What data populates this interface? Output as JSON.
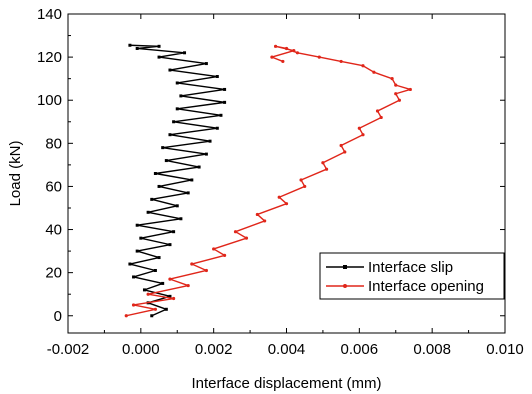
{
  "chart_data": {
    "type": "line",
    "title": "",
    "xlabel": "Interface displacement (mm)",
    "ylabel": "Load (kN)",
    "xlim": [
      -0.002,
      0.01
    ],
    "ylim": [
      -8,
      140
    ],
    "x_ticks": [
      "-0.002",
      "0.000",
      "0.002",
      "0.004",
      "0.006",
      "0.008",
      "0.010"
    ],
    "y_ticks": [
      "0",
      "20",
      "40",
      "60",
      "80",
      "100",
      "120",
      "140"
    ],
    "legend_position": "middle-right",
    "grid": false,
    "series": [
      {
        "name": "Interface slip",
        "color": "#000000",
        "marker": "square",
        "points": [
          [
            0.0003,
            0
          ],
          [
            0.0007,
            3
          ],
          [
            0.0002,
            6
          ],
          [
            0.0008,
            9
          ],
          [
            0.0001,
            12
          ],
          [
            0.0006,
            15
          ],
          [
            -0.0002,
            18
          ],
          [
            0.0004,
            21
          ],
          [
            -0.0003,
            24
          ],
          [
            0.0005,
            27
          ],
          [
            -0.0001,
            30
          ],
          [
            0.0008,
            33
          ],
          [
            0.0,
            36
          ],
          [
            0.0009,
            39
          ],
          [
            -0.0001,
            42
          ],
          [
            0.0011,
            45
          ],
          [
            0.0002,
            48
          ],
          [
            0.001,
            51
          ],
          [
            0.0003,
            54
          ],
          [
            0.0013,
            57
          ],
          [
            0.0005,
            60
          ],
          [
            0.0014,
            63
          ],
          [
            0.0004,
            66
          ],
          [
            0.0016,
            69
          ],
          [
            0.0007,
            72
          ],
          [
            0.0018,
            75
          ],
          [
            0.0006,
            78
          ],
          [
            0.0019,
            81
          ],
          [
            0.0008,
            84
          ],
          [
            0.0021,
            87
          ],
          [
            0.0009,
            90
          ],
          [
            0.0022,
            93
          ],
          [
            0.001,
            96
          ],
          [
            0.0023,
            99
          ],
          [
            0.0011,
            102
          ],
          [
            0.0023,
            105
          ],
          [
            0.001,
            108
          ],
          [
            0.0021,
            111
          ],
          [
            0.0008,
            114
          ],
          [
            0.0018,
            117
          ],
          [
            0.0005,
            120
          ],
          [
            0.0012,
            122
          ],
          [
            -0.0001,
            124
          ],
          [
            0.0005,
            125
          ],
          [
            -0.0003,
            125.5
          ]
        ]
      },
      {
        "name": "Interface opening",
        "color": "#e0261a",
        "marker": "circle",
        "points": [
          [
            -0.0004,
            0
          ],
          [
            0.0004,
            3
          ],
          [
            -0.0002,
            5
          ],
          [
            0.0009,
            8
          ],
          [
            0.0002,
            10
          ],
          [
            0.0013,
            14
          ],
          [
            0.0008,
            17
          ],
          [
            0.0018,
            21
          ],
          [
            0.0014,
            24
          ],
          [
            0.0023,
            28
          ],
          [
            0.002,
            31
          ],
          [
            0.0029,
            36
          ],
          [
            0.0026,
            39
          ],
          [
            0.0034,
            44
          ],
          [
            0.0032,
            47
          ],
          [
            0.004,
            52
          ],
          [
            0.0038,
            55
          ],
          [
            0.0045,
            60
          ],
          [
            0.0044,
            63
          ],
          [
            0.0051,
            68
          ],
          [
            0.005,
            71
          ],
          [
            0.0056,
            76
          ],
          [
            0.0055,
            79
          ],
          [
            0.0061,
            84
          ],
          [
            0.006,
            87
          ],
          [
            0.0066,
            92
          ],
          [
            0.0065,
            95
          ],
          [
            0.0071,
            100
          ],
          [
            0.007,
            103
          ],
          [
            0.0074,
            105
          ],
          [
            0.007,
            107
          ],
          [
            0.0069,
            110
          ],
          [
            0.0064,
            113
          ],
          [
            0.0061,
            116
          ],
          [
            0.0055,
            118
          ],
          [
            0.0049,
            120
          ],
          [
            0.0043,
            122
          ],
          [
            0.004,
            124
          ],
          [
            0.0037,
            125
          ],
          [
            0.0042,
            123
          ],
          [
            0.0036,
            120
          ],
          [
            0.0039,
            118
          ]
        ]
      }
    ]
  }
}
